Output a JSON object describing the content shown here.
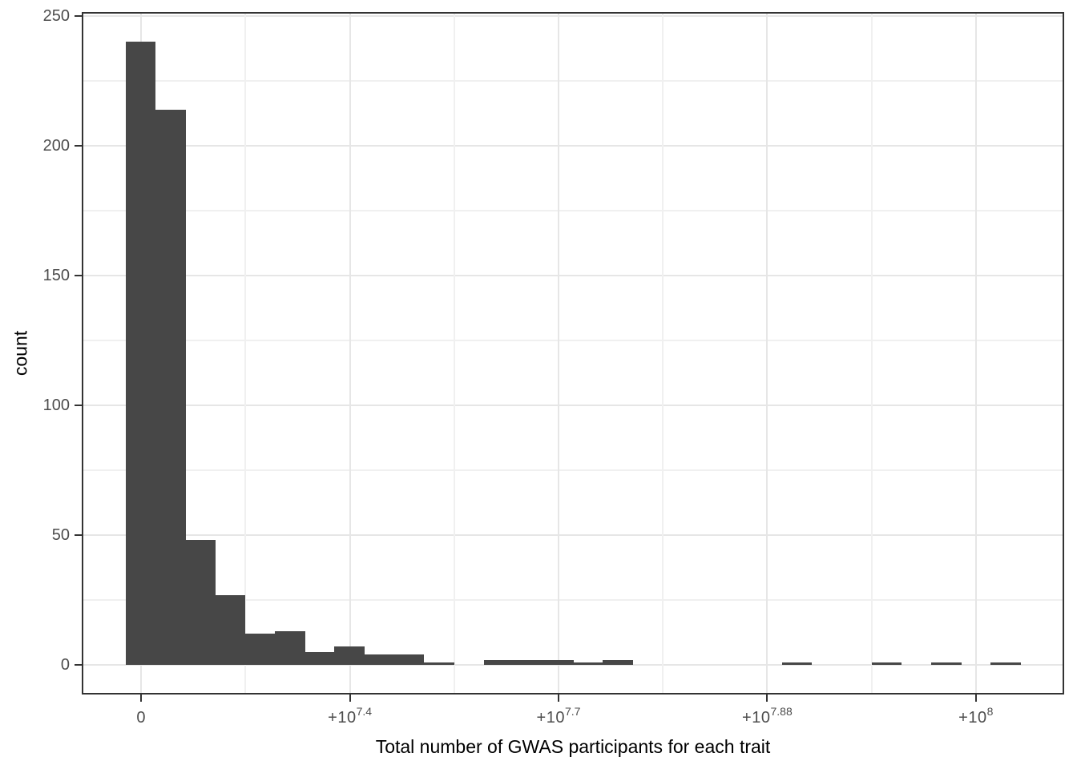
{
  "chart_data": {
    "type": "bar",
    "subtype": "histogram",
    "title": "",
    "xlabel": "Total number of GWAS participants for each trait",
    "ylabel": "count",
    "ylim": [
      0,
      250
    ],
    "y_ticks": [
      0,
      50,
      100,
      150,
      200,
      250
    ],
    "y_minor_ticks": [
      25,
      75,
      125,
      175,
      225
    ],
    "x_ticks": [
      {
        "base": "0",
        "exponent": ""
      },
      {
        "base": "+10",
        "exponent": "7.4"
      },
      {
        "base": "+10",
        "exponent": "7.7"
      },
      {
        "base": "+10",
        "exponent": "7.88"
      },
      {
        "base": "+10",
        "exponent": "8"
      }
    ],
    "bin_counts": [
      240,
      214,
      48,
      27,
      12,
      13,
      5,
      7,
      4,
      4,
      1,
      0,
      2,
      2,
      2,
      1,
      2,
      0,
      0,
      0,
      0,
      0,
      1,
      0,
      0,
      1,
      0,
      1,
      0,
      1
    ],
    "grid": "on",
    "legend": "none",
    "colors": {
      "bar": "#474747",
      "grid_major": "#E6E6E6",
      "grid_minor": "#F0F0F0",
      "panel_border": "#333333",
      "tick_mark": "#333333",
      "tick_label": "#4D4D4D",
      "axis_title": "#000000",
      "background": "#FFFFFF"
    }
  }
}
